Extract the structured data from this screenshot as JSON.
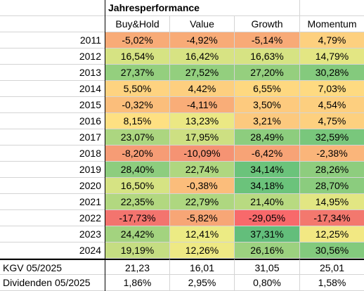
{
  "sheet": {
    "title": "Jahresperformance",
    "columns": [
      "Buy&Hold",
      "Value",
      "Growth",
      "Momentum"
    ],
    "rows": [
      {
        "label": "2011",
        "values": [
          "-5,02%",
          "-4,92%",
          "-5,14%",
          "4,79%"
        ],
        "colors": [
          "#f8ab77",
          "#f8ab77",
          "#f8aa77",
          "#fdd07f"
        ]
      },
      {
        "label": "2012",
        "values": [
          "16,54%",
          "16,42%",
          "16,63%",
          "14,79%"
        ],
        "colors": [
          "#d6e383",
          "#d7e383",
          "#d6e383",
          "#e3e683"
        ]
      },
      {
        "label": "2013",
        "values": [
          "27,37%",
          "27,52%",
          "27,20%",
          "30,28%"
        ],
        "colors": [
          "#94cf7e",
          "#93cf7e",
          "#95cf7e",
          "#84ca7d"
        ]
      },
      {
        "label": "2014",
        "values": [
          "5,50%",
          "4,42%",
          "6,55%",
          "7,03%"
        ],
        "colors": [
          "#fed380",
          "#fdcf7f",
          "#fed880",
          "#feda81"
        ]
      },
      {
        "label": "2015",
        "values": [
          "-0,32%",
          "-4,11%",
          "3,50%",
          "4,54%"
        ],
        "colors": [
          "#fbbe7b",
          "#f9ad78",
          "#fdca7e",
          "#fdcf7f"
        ]
      },
      {
        "label": "2016",
        "values": [
          "8,15%",
          "13,23%",
          "3,21%",
          "4,75%"
        ],
        "colors": [
          "#fee082",
          "#ebe884",
          "#fcc97e",
          "#fdd07f"
        ]
      },
      {
        "label": "2017",
        "values": [
          "23,07%",
          "17,95%",
          "28,49%",
          "32,59%"
        ],
        "colors": [
          "#acd680",
          "#cde082",
          "#8dcd7e",
          "#79c77c"
        ]
      },
      {
        "label": "2018",
        "values": [
          "-8,20%",
          "-10,09%",
          "-6,42%",
          "-2,38%"
        ],
        "colors": [
          "#f69c75",
          "#f59373",
          "#f7a376",
          "#fab57a"
        ]
      },
      {
        "label": "2019",
        "values": [
          "28,40%",
          "22,74%",
          "34,14%",
          "28,26%"
        ],
        "colors": [
          "#8dcd7e",
          "#afd780",
          "#6bc37b",
          "#8ecd7e"
        ]
      },
      {
        "label": "2020",
        "values": [
          "16,50%",
          "-0,38%",
          "34,18%",
          "28,70%"
        ],
        "colors": [
          "#d6e383",
          "#fbbd7b",
          "#6bc37b",
          "#8bcc7e"
        ]
      },
      {
        "label": "2021",
        "values": [
          "22,35%",
          "22,79%",
          "21,40%",
          "14,95%"
        ],
        "colors": [
          "#b2d880",
          "#aed780",
          "#b8da81",
          "#e2e683"
        ]
      },
      {
        "label": "2022",
        "values": [
          "-17,73%",
          "-5,82%",
          "-29,05%",
          "-17,34%"
        ],
        "colors": [
          "#f3746e",
          "#f7a676",
          "#f8696b",
          "#f3786e"
        ]
      },
      {
        "label": "2023",
        "values": [
          "24,42%",
          "12,41%",
          "37,31%",
          "12,25%"
        ],
        "colors": [
          "#a3d37f",
          "#eceb84",
          "#63be7b",
          "#f2e883"
        ]
      },
      {
        "label": "2024",
        "values": [
          "19,19%",
          "12,26%",
          "26,16%",
          "30,56%"
        ],
        "colors": [
          "#c5dd82",
          "#eee984",
          "#9cd17f",
          "#83ca7d"
        ]
      }
    ],
    "summary": [
      {
        "label": "KGV 05/2025",
        "values": [
          "21,23",
          "16,01",
          "31,05",
          "25,01"
        ]
      },
      {
        "label": "Dividenden 05/2025",
        "values": [
          "1,86%",
          "2,95%",
          "0,80%",
          "1,58%"
        ]
      }
    ]
  }
}
